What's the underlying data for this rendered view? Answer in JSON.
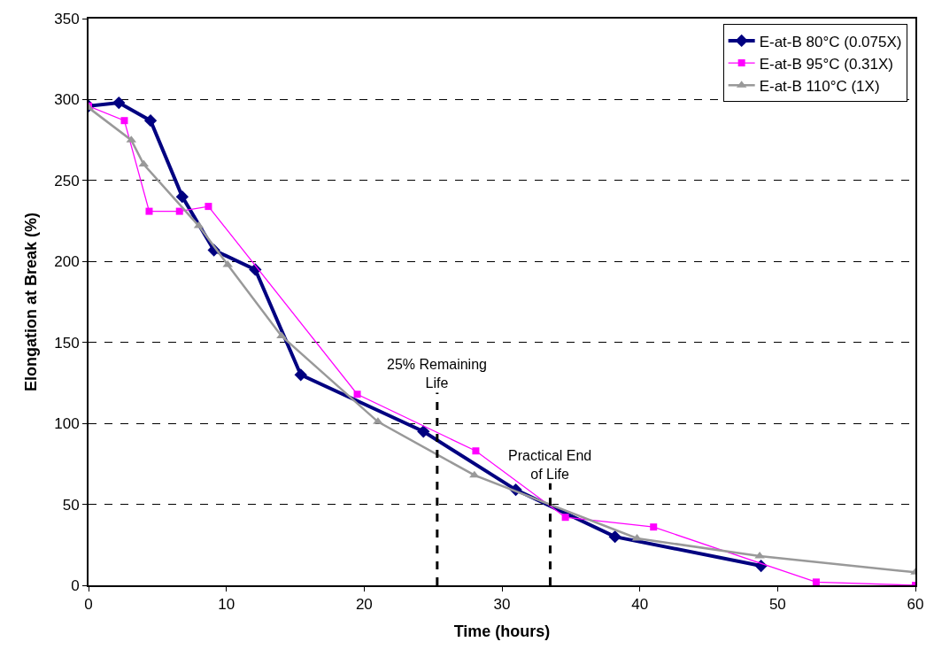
{
  "chart_data": {
    "type": "line",
    "xlabel": "Time (hours)",
    "ylabel": "Elongation at Break (%)",
    "xlim": [
      0,
      60
    ],
    "xticks": [
      0,
      10,
      20,
      30,
      40,
      50,
      60
    ],
    "ylim": [
      0,
      350
    ],
    "yticks": [
      0,
      50,
      100,
      150,
      200,
      250,
      300,
      350
    ],
    "grid": "y",
    "legend": "top right",
    "series": [
      {
        "name": "E-at-B 80°C (0.075X)",
        "color": "#000080",
        "marker": "diamond",
        "x": [
          0,
          2.2,
          4.5,
          6.8,
          9.1,
          12.1,
          15.4,
          24.3,
          31.0,
          38.2,
          48.8
        ],
        "values": [
          296,
          298,
          287,
          240,
          207,
          195,
          130,
          95,
          59,
          30,
          12
        ]
      },
      {
        "name": "E-at-B 95°C (0.31X)",
        "color": "#ff00ff",
        "marker": "square",
        "x": [
          0,
          2.6,
          4.4,
          6.6,
          8.7,
          19.5,
          28.1,
          34.6,
          41.0,
          52.8,
          60
        ],
        "values": [
          296,
          287,
          231,
          231,
          234,
          118,
          83,
          42,
          36,
          2,
          0
        ]
      },
      {
        "name": "E-at-B 110°C (1X)",
        "color": "#999999",
        "marker": "triangle",
        "x": [
          0,
          3.1,
          4.0,
          8.0,
          10.1,
          14.0,
          21.0,
          28.0,
          39.8,
          48.7,
          60
        ],
        "values": [
          295,
          275,
          260,
          222,
          198,
          154,
          101,
          68,
          29,
          18,
          8
        ]
      }
    ],
    "ref_lines": [
      {
        "axis": "x",
        "value": 25.3,
        "label": "25% Remaining\nLife",
        "line_style": "dashed",
        "color": "#000000"
      },
      {
        "axis": "x",
        "value": 33.5,
        "label": "Practical End\nof Life",
        "line_style": "dashed",
        "color": "#000000"
      }
    ]
  }
}
